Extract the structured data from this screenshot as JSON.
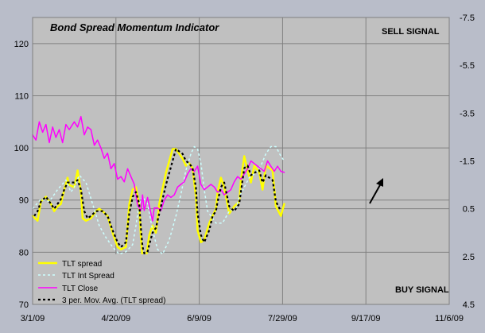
{
  "chart_data": {
    "type": "line",
    "title": "Bond Spread Momentum Indicator",
    "annotations": {
      "top_right": "SELL SIGNAL",
      "bottom_right": "BUY SIGNAL"
    },
    "colors": {
      "outer_bg": "#b9bdc9",
      "plot_bg": "#c0c0c0",
      "grid": "#808080",
      "tlt_spread": "#ffff00",
      "tlt_int_spread": "#ccffff",
      "tlt_close": "#ff00ff",
      "moving_avg": "#000000",
      "arrow": "#000000"
    },
    "left_axis": {
      "min": 70,
      "max": 125,
      "ticks": [
        "70",
        "80",
        "90",
        "100",
        "110",
        "120"
      ]
    },
    "right_axis": {
      "min": -7.5,
      "max": 4.5,
      "reversed": true,
      "ticks": [
        "-7.5",
        "-5.5",
        "-3.5",
        "-1.5",
        "0.5",
        "2.5",
        "4.5"
      ]
    },
    "x_axis": {
      "min": "2009-03-01",
      "max": "2009-11-06",
      "ticks": [
        "3/1/09",
        "4/20/09",
        "6/9/09",
        "7/29/09",
        "9/17/09",
        "11/6/09"
      ]
    },
    "series": [
      {
        "name": "TLT spread",
        "axis": "right",
        "style": "solid",
        "width": 2.5,
        "color": "#ffff00",
        "points": [
          [
            0,
            0.8
          ],
          [
            3,
            1.0
          ],
          [
            5,
            0.2
          ],
          [
            8,
            0.0
          ],
          [
            11,
            0.3
          ],
          [
            13,
            0.6
          ],
          [
            15,
            0.4
          ],
          [
            17,
            0.3
          ],
          [
            19,
            -0.3
          ],
          [
            21,
            -0.8
          ],
          [
            22,
            -0.5
          ],
          [
            25,
            -0.4
          ],
          [
            27,
            -1.1
          ],
          [
            29,
            -0.2
          ],
          [
            30,
            0.9
          ],
          [
            32,
            1.0
          ],
          [
            35,
            0.9
          ],
          [
            38,
            0.6
          ],
          [
            40,
            0.5
          ],
          [
            42,
            0.6
          ],
          [
            45,
            0.8
          ],
          [
            48,
            1.5
          ],
          [
            51,
            2.1
          ],
          [
            53,
            2.2
          ],
          [
            56,
            2.1
          ],
          [
            57,
            1.2
          ],
          [
            58,
            0.3
          ],
          [
            60,
            -0.3
          ],
          [
            62,
            -0.4
          ],
          [
            64,
            0.3
          ],
          [
            65,
            1.7
          ],
          [
            66,
            2.6
          ],
          [
            68,
            2.6
          ],
          [
            70,
            1.6
          ],
          [
            72,
            1.2
          ],
          [
            74,
            1.5
          ],
          [
            76,
            0.3
          ],
          [
            80,
            -1.0
          ],
          [
            84,
            -2.0
          ],
          [
            86,
            -2.0
          ],
          [
            90,
            -1.6
          ],
          [
            92,
            -1.3
          ],
          [
            94,
            -1.4
          ],
          [
            96,
            -1.2
          ],
          [
            98,
            0.0
          ],
          [
            99,
            1.4
          ],
          [
            101,
            1.9
          ],
          [
            103,
            1.8
          ],
          [
            106,
            1.1
          ],
          [
            108,
            0.8
          ],
          [
            110,
            0.5
          ],
          [
            111,
            -0.2
          ],
          [
            113,
            -0.8
          ],
          [
            115,
            -0.4
          ],
          [
            118,
            0.7
          ],
          [
            121,
            0.4
          ],
          [
            124,
            0.2
          ],
          [
            125,
            -0.7
          ],
          [
            127,
            -1.7
          ],
          [
            129,
            -1.1
          ],
          [
            131,
            -0.6
          ],
          [
            133,
            -1.3
          ],
          [
            136,
            -1.0
          ],
          [
            138,
            -0.3
          ],
          [
            140,
            -1.3
          ],
          [
            144,
            -1.1
          ],
          [
            146,
            0.4
          ],
          [
            149,
            0.8
          ],
          [
            151,
            0.3
          ]
        ]
      },
      {
        "name": "TLT Int Spread",
        "axis": "right",
        "style": "dashed",
        "width": 1.5,
        "color": "#ccffff",
        "points": [
          [
            0,
            0.5
          ],
          [
            5,
            0.1
          ],
          [
            10,
            0.2
          ],
          [
            15,
            -0.3
          ],
          [
            20,
            -0.7
          ],
          [
            23,
            -0.2
          ],
          [
            25,
            -0.4
          ],
          [
            28,
            -0.9
          ],
          [
            32,
            -0.6
          ],
          [
            36,
            0.3
          ],
          [
            40,
            1.2
          ],
          [
            44,
            1.7
          ],
          [
            48,
            2.1
          ],
          [
            52,
            2.4
          ],
          [
            56,
            2.3
          ],
          [
            60,
            2.0
          ],
          [
            62,
            1.2
          ],
          [
            64,
            0.3
          ],
          [
            66,
            0.0
          ],
          [
            69,
            0.3
          ],
          [
            72,
            1.4
          ],
          [
            75,
            2.2
          ],
          [
            78,
            2.4
          ],
          [
            82,
            1.8
          ],
          [
            86,
            0.8
          ],
          [
            89,
            -0.1
          ],
          [
            92,
            -1.1
          ],
          [
            95,
            -1.8
          ],
          [
            97,
            -2.1
          ],
          [
            99,
            -2.0
          ],
          [
            101,
            -1.4
          ],
          [
            103,
            -0.3
          ],
          [
            105,
            0.6
          ],
          [
            107,
            0.8
          ],
          [
            110,
            1.1
          ],
          [
            114,
            1.1
          ],
          [
            118,
            0.6
          ],
          [
            122,
            0.5
          ],
          [
            124,
            0.0
          ],
          [
            127,
            -0.4
          ],
          [
            130,
            -0.8
          ],
          [
            134,
            -1.0
          ],
          [
            137,
            -1.3
          ],
          [
            140,
            -1.8
          ],
          [
            143,
            -2.1
          ],
          [
            146,
            -2.1
          ],
          [
            149,
            -1.7
          ],
          [
            151,
            -1.5
          ]
        ]
      },
      {
        "name": "TLT Close",
        "axis": "left",
        "style": "solid",
        "width": 1.5,
        "color": "#ff00ff",
        "points": [
          [
            0,
            102.5
          ],
          [
            2,
            101.5
          ],
          [
            4,
            105
          ],
          [
            6,
            103
          ],
          [
            8,
            104.5
          ],
          [
            10,
            101
          ],
          [
            12,
            104
          ],
          [
            14,
            102
          ],
          [
            16,
            103.5
          ],
          [
            18,
            101
          ],
          [
            20,
            104.5
          ],
          [
            22,
            103.5
          ],
          [
            25,
            105
          ],
          [
            27,
            104
          ],
          [
            29,
            106
          ],
          [
            31,
            102.5
          ],
          [
            33,
            104
          ],
          [
            35,
            103.5
          ],
          [
            37,
            100.5
          ],
          [
            39,
            101.5
          ],
          [
            41,
            100
          ],
          [
            43,
            98
          ],
          [
            45,
            99
          ],
          [
            47,
            96
          ],
          [
            49,
            97
          ],
          [
            51,
            94
          ],
          [
            53,
            94.5
          ],
          [
            55,
            93.5
          ],
          [
            57,
            96
          ],
          [
            59,
            94.5
          ],
          [
            61,
            93
          ],
          [
            63,
            89
          ],
          [
            65,
            88
          ],
          [
            66,
            91
          ],
          [
            67,
            88
          ],
          [
            69,
            90.5
          ],
          [
            71,
            87.5
          ],
          [
            72,
            86
          ],
          [
            73,
            88.5
          ],
          [
            75,
            88.5
          ],
          [
            77,
            88
          ],
          [
            79,
            90
          ],
          [
            81,
            91
          ],
          [
            83,
            90.5
          ],
          [
            85,
            91
          ],
          [
            87,
            92.5
          ],
          [
            89,
            93
          ],
          [
            91,
            93.5
          ],
          [
            93,
            95
          ],
          [
            95,
            96
          ],
          [
            97,
            95.5
          ],
          [
            99,
            96.5
          ],
          [
            101,
            93
          ],
          [
            103,
            92
          ],
          [
            105,
            92.5
          ],
          [
            107,
            93
          ],
          [
            109,
            92.5
          ],
          [
            111,
            91.5
          ],
          [
            113,
            92
          ],
          [
            115,
            91
          ],
          [
            117,
            91.5
          ],
          [
            119,
            92
          ],
          [
            121,
            93.5
          ],
          [
            123,
            94.5
          ],
          [
            125,
            94
          ],
          [
            127,
            95
          ],
          [
            129,
            96
          ],
          [
            131,
            97.5
          ],
          [
            133,
            97
          ],
          [
            135,
            96.5
          ],
          [
            137,
            96
          ],
          [
            139,
            95.5
          ],
          [
            141,
            97.5
          ],
          [
            143,
            96.5
          ],
          [
            145,
            95.5
          ],
          [
            147,
            96.5
          ],
          [
            149,
            95.5
          ],
          [
            151,
            95.3
          ]
        ]
      },
      {
        "name": "3 per. Mov. Avg. (TLT spread)",
        "axis": "right",
        "style": "dashed",
        "width": 2.2,
        "color": "#000000",
        "points": [
          [
            1,
            0.8
          ],
          [
            3,
            0.6
          ],
          [
            5,
            0.2
          ],
          [
            8,
            0.0
          ],
          [
            11,
            0.3
          ],
          [
            13,
            0.5
          ],
          [
            15,
            0.3
          ],
          [
            17,
            0.1
          ],
          [
            19,
            -0.3
          ],
          [
            21,
            -0.6
          ],
          [
            23,
            -0.6
          ],
          [
            25,
            -0.6
          ],
          [
            27,
            -0.7
          ],
          [
            29,
            -0.3
          ],
          [
            31,
            0.6
          ],
          [
            33,
            0.9
          ],
          [
            35,
            0.8
          ],
          [
            38,
            0.6
          ],
          [
            40,
            0.6
          ],
          [
            42,
            0.6
          ],
          [
            45,
            0.8
          ],
          [
            48,
            1.4
          ],
          [
            51,
            1.9
          ],
          [
            53,
            2.1
          ],
          [
            56,
            1.9
          ],
          [
            57,
            1.3
          ],
          [
            58,
            0.7
          ],
          [
            60,
            0.0
          ],
          [
            62,
            -0.2
          ],
          [
            64,
            0.3
          ],
          [
            65,
            1.3
          ],
          [
            66,
            2.1
          ],
          [
            68,
            2.6
          ],
          [
            70,
            2.0
          ],
          [
            72,
            1.5
          ],
          [
            74,
            1.3
          ],
          [
            76,
            0.7
          ],
          [
            80,
            -0.5
          ],
          [
            84,
            -1.5
          ],
          [
            86,
            -2.0
          ],
          [
            90,
            -1.8
          ],
          [
            92,
            -1.5
          ],
          [
            94,
            -1.4
          ],
          [
            96,
            -1.2
          ],
          [
            98,
            -0.4
          ],
          [
            99,
            0.7
          ],
          [
            101,
            1.6
          ],
          [
            103,
            1.9
          ],
          [
            106,
            1.4
          ],
          [
            108,
            0.8
          ],
          [
            110,
            0.6
          ],
          [
            111,
            0.2
          ],
          [
            113,
            -0.4
          ],
          [
            115,
            -0.6
          ],
          [
            118,
            0.4
          ],
          [
            121,
            0.6
          ],
          [
            124,
            0.3
          ],
          [
            125,
            -0.2
          ],
          [
            127,
            -1.2
          ],
          [
            129,
            -1.3
          ],
          [
            131,
            -0.9
          ],
          [
            133,
            -1.0
          ],
          [
            136,
            -1.1
          ],
          [
            138,
            -0.6
          ],
          [
            140,
            -0.9
          ],
          [
            144,
            -0.7
          ],
          [
            146,
            0.2
          ],
          [
            149,
            0.6
          ]
        ]
      }
    ],
    "legend": {
      "placement": "bottom-left",
      "entries": [
        "TLT spread",
        "TLT Int Spread",
        "TLT Close",
        "3 per. Mov. Avg. (TLT spread)"
      ]
    }
  }
}
